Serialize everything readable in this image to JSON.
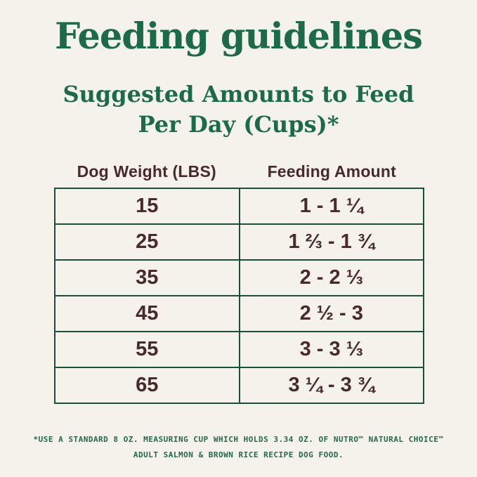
{
  "page": {
    "title": "Feeding guidelines",
    "subtitle_line1": "Suggested Amounts to Feed",
    "subtitle_line2": "Per Day (Cups)*"
  },
  "table": {
    "headers": {
      "weight": "Dog Weight (LBS)",
      "amount": "Feeding Amount"
    },
    "rows": [
      {
        "weight": "15",
        "amount": "1 - 1 ¼"
      },
      {
        "weight": "25",
        "amount": "1 ⅔ - 1 ¾"
      },
      {
        "weight": "35",
        "amount": "2 - 2 ⅓"
      },
      {
        "weight": "45",
        "amount": "2 ½ - 3"
      },
      {
        "weight": "55",
        "amount": "3 - 3 ⅓"
      },
      {
        "weight": "65",
        "amount": "3 ¼ - 3 ¾"
      }
    ]
  },
  "footnote": {
    "line1": "*USE A STANDARD 8 OZ. MEASURING CUP WHICH HOLDS 3.34 OZ. OF NUTRO™ NATURAL CHOICE™",
    "line2": "ADULT SALMON & BROWN RICE RECIPE DOG FOOD."
  },
  "colors": {
    "background": "#f4f2ea",
    "heading_green": "#1b6a48",
    "table_border_green": "#1a4e3c",
    "text_brown": "#48292c",
    "footnote_green": "#24684b"
  }
}
